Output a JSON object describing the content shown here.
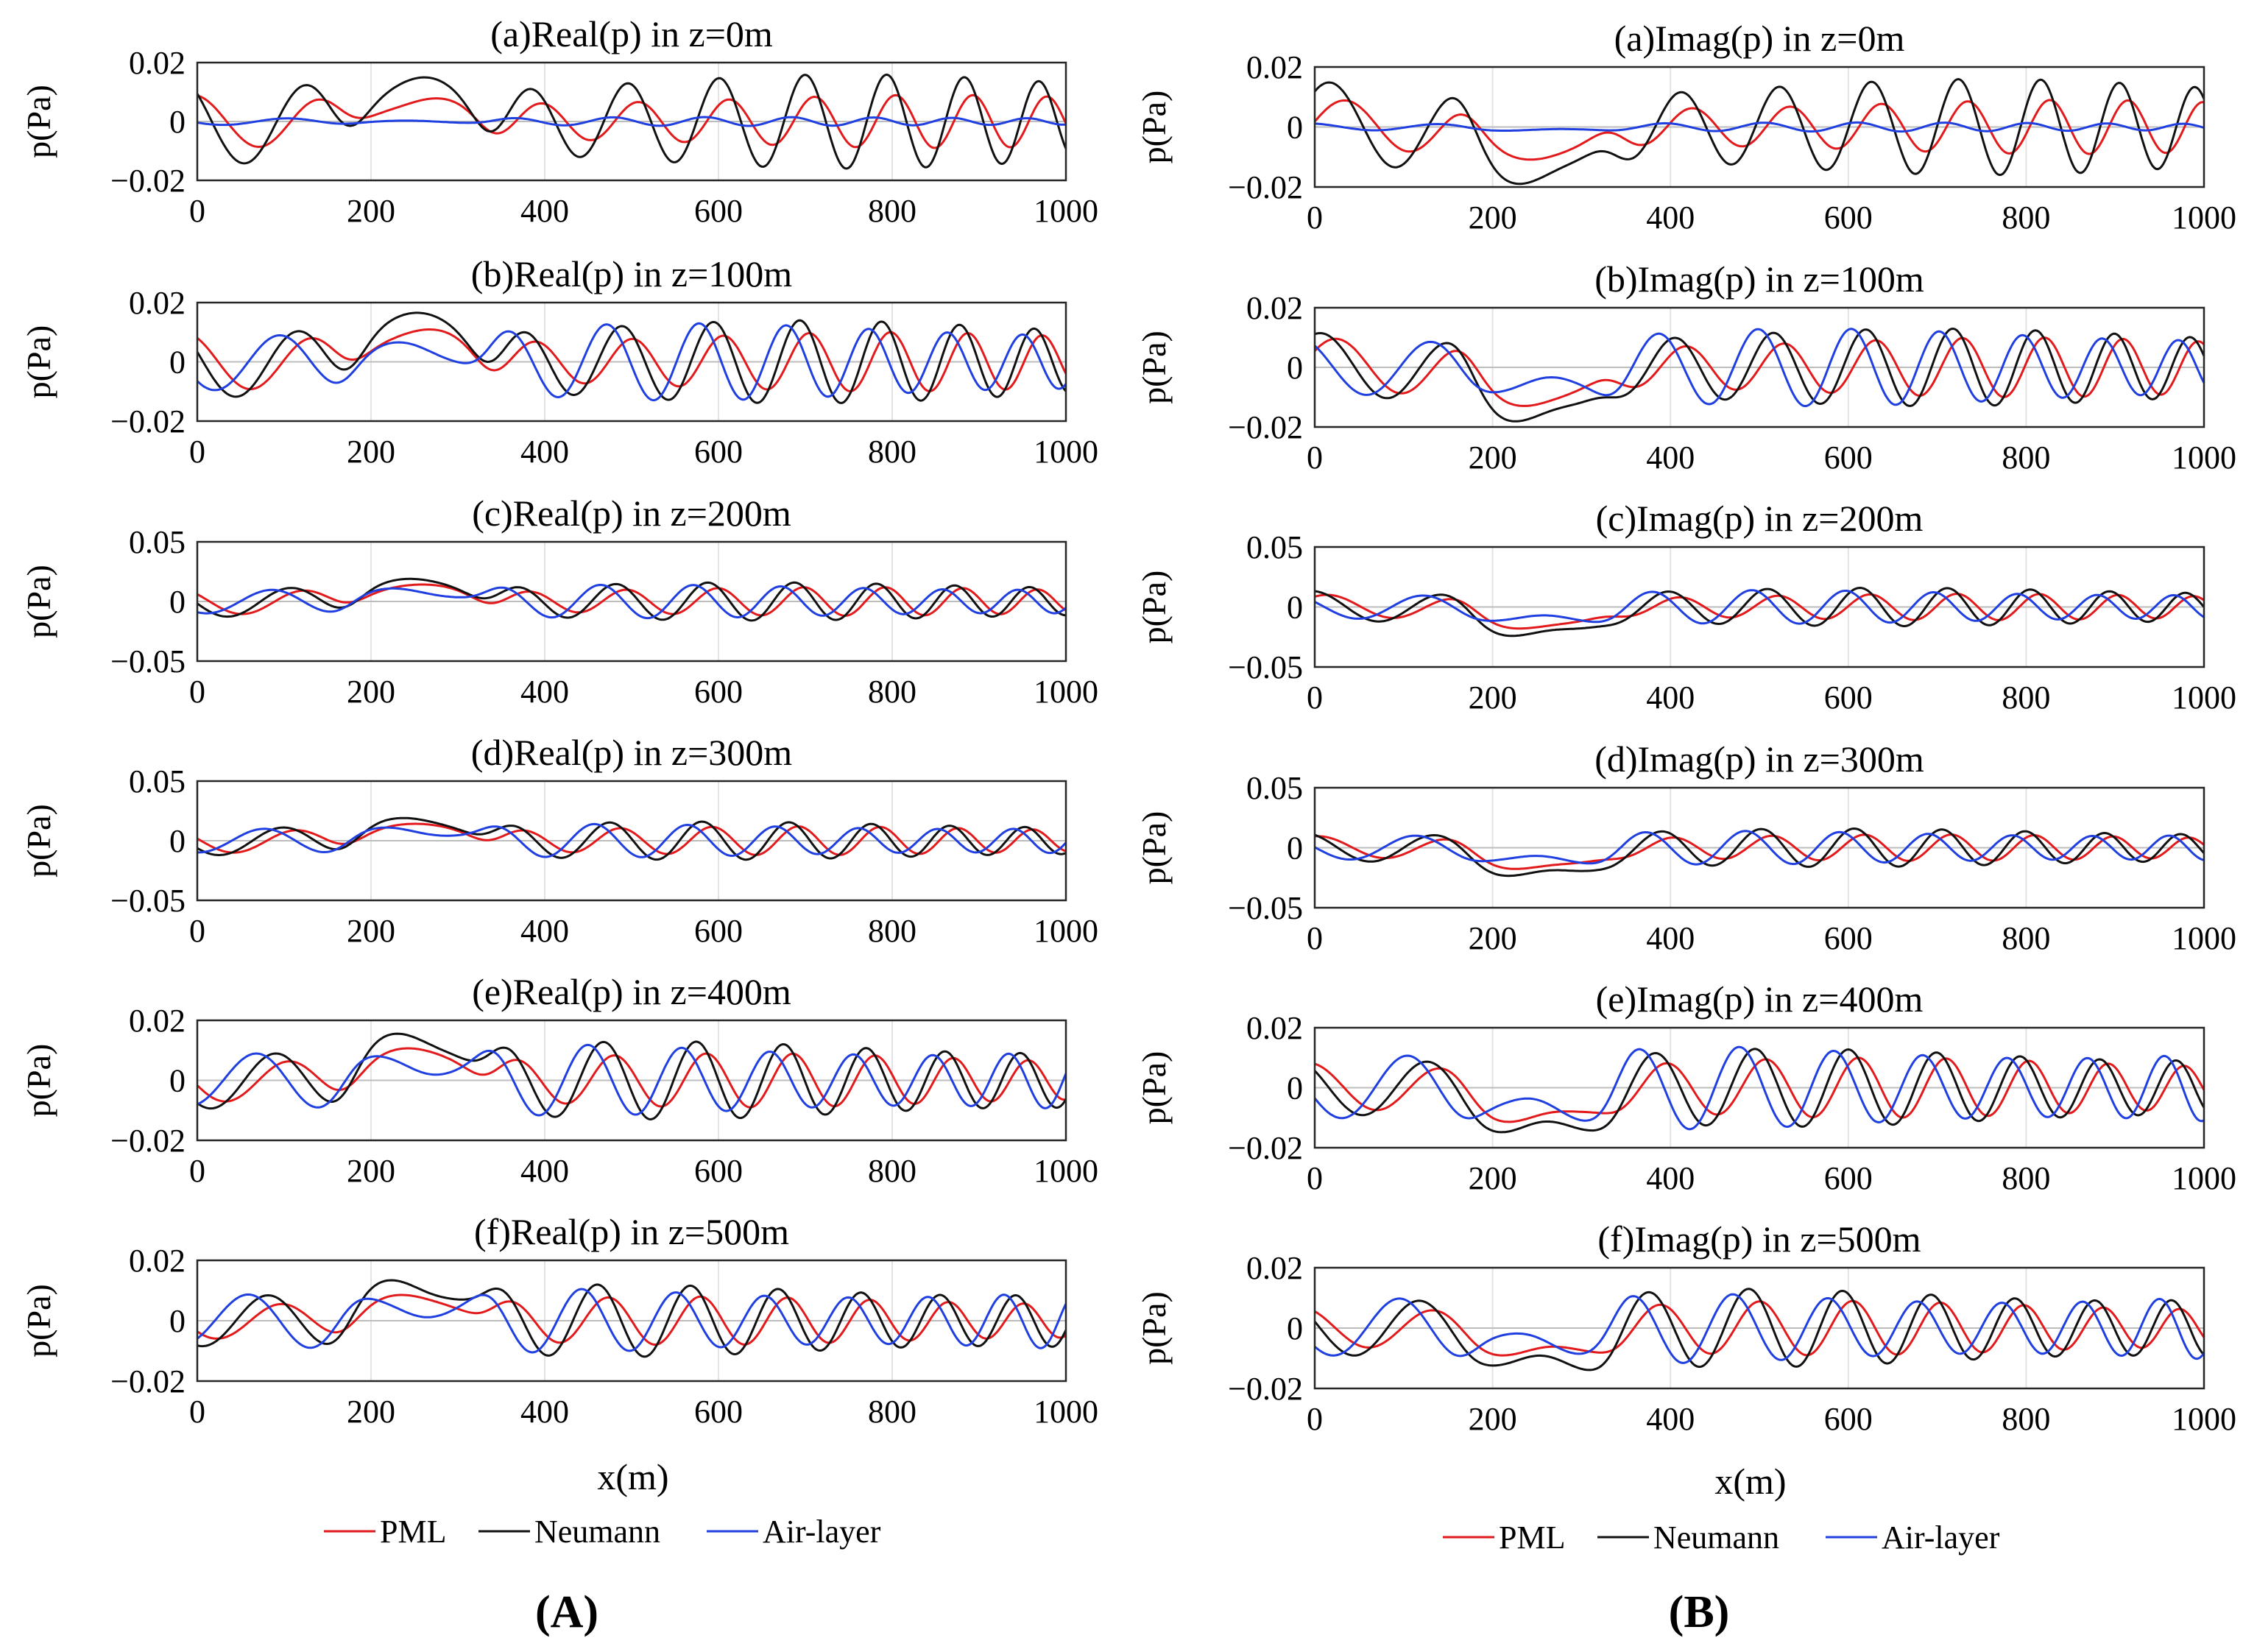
{
  "figure": {
    "panel_labels": [
      "(A)",
      "(B)"
    ],
    "legend_labels": [
      "PML",
      "Neumann",
      "Air-layer"
    ]
  },
  "chart_data": [
    {
      "id": "A-a",
      "type": "line",
      "title": "(a)Real(p) in z=0m",
      "ylabel": "p(Pa)",
      "xlabel": "",
      "xlim": [
        0,
        1000
      ],
      "ylim": [
        -0.02,
        0.02
      ],
      "xticks": [
        "0",
        "200",
        "400",
        "600",
        "800",
        "1000"
      ],
      "yticks": [
        "0.02",
        "0",
        "−0.02"
      ],
      "grid": "x",
      "series": [
        {
          "name": "PML",
          "color": "#e31a1c",
          "amplitude": 0.009,
          "bump": 0.006
        },
        {
          "name": "Neumann",
          "color": "#111111",
          "amplitude": 0.016,
          "bump": 0.012
        },
        {
          "name": "Air-layer",
          "color": "#1f3fe0",
          "amplitude": 0.0015,
          "bump": 0.0
        }
      ]
    },
    {
      "id": "A-b",
      "type": "line",
      "title": "(b)Real(p) in z=100m",
      "ylabel": "p(Pa)",
      "xlabel": "",
      "xlim": [
        0,
        1000
      ],
      "ylim": [
        -0.02,
        0.02
      ],
      "xticks": [
        "0",
        "200",
        "400",
        "600",
        "800",
        "1000"
      ],
      "yticks": [
        "0.02",
        "0",
        "−0.02"
      ],
      "grid": "x",
      "series": [
        {
          "name": "PML",
          "color": "#e31a1c",
          "amplitude": 0.01,
          "bump": 0.009
        },
        {
          "name": "Neumann",
          "color": "#111111",
          "amplitude": 0.014,
          "bump": 0.014
        },
        {
          "name": "Air-layer",
          "color": "#1f3fe0",
          "amplitude": 0.013,
          "bump": 0.004
        }
      ]
    },
    {
      "id": "A-c",
      "type": "line",
      "title": "(c)Real(p) in z=200m",
      "ylabel": "p(Pa)",
      "xlabel": "",
      "xlim": [
        0,
        1000
      ],
      "ylim": [
        -0.05,
        0.05
      ],
      "xticks": [
        "0",
        "200",
        "400",
        "600",
        "800",
        "1000"
      ],
      "yticks": [
        "0.05",
        "0",
        "−0.05"
      ],
      "grid": "x",
      "series": [
        {
          "name": "PML",
          "color": "#e31a1c",
          "amplitude": 0.012,
          "bump": 0.012
        },
        {
          "name": "Neumann",
          "color": "#111111",
          "amplitude": 0.016,
          "bump": 0.016
        },
        {
          "name": "Air-layer",
          "color": "#1f3fe0",
          "amplitude": 0.014,
          "bump": 0.008
        }
      ]
    },
    {
      "id": "A-d",
      "type": "line",
      "title": "(d)Real(p) in z=300m",
      "ylabel": "p(Pa)",
      "xlabel": "",
      "xlim": [
        0,
        1000
      ],
      "ylim": [
        -0.05,
        0.05
      ],
      "xticks": [
        "0",
        "200",
        "400",
        "600",
        "800",
        "1000"
      ],
      "yticks": [
        "0.05",
        "0",
        "−0.05"
      ],
      "grid": "x",
      "series": [
        {
          "name": "PML",
          "color": "#e31a1c",
          "amplitude": 0.012,
          "bump": 0.012
        },
        {
          "name": "Neumann",
          "color": "#111111",
          "amplitude": 0.016,
          "bump": 0.016
        },
        {
          "name": "Air-layer",
          "color": "#1f3fe0",
          "amplitude": 0.014,
          "bump": 0.008
        }
      ]
    },
    {
      "id": "A-e",
      "type": "line",
      "title": "(e)Real(p) in z=400m",
      "ylabel": "p(Pa)",
      "xlabel": "",
      "xlim": [
        0,
        1000
      ],
      "ylim": [
        -0.02,
        0.02
      ],
      "xticks": [
        "0",
        "200",
        "400",
        "600",
        "800",
        "1000"
      ],
      "yticks": [
        "0.02",
        "0",
        "−0.02"
      ],
      "grid": "x",
      "series": [
        {
          "name": "PML",
          "color": "#e31a1c",
          "amplitude": 0.009,
          "bump": 0.009
        },
        {
          "name": "Neumann",
          "color": "#111111",
          "amplitude": 0.013,
          "bump": 0.013
        },
        {
          "name": "Air-layer",
          "color": "#1f3fe0",
          "amplitude": 0.012,
          "bump": 0.005
        }
      ]
    },
    {
      "id": "A-f",
      "type": "line",
      "title": "(f)Real(p) in z=500m",
      "ylabel": "p(Pa)",
      "xlabel": "x(m)",
      "xlim": [
        0,
        1000
      ],
      "ylim": [
        -0.02,
        0.02
      ],
      "xticks": [
        "0",
        "200",
        "400",
        "600",
        "800",
        "1000"
      ],
      "yticks": [
        "0.02",
        "0",
        "−0.02"
      ],
      "grid": "x",
      "series": [
        {
          "name": "PML",
          "color": "#e31a1c",
          "amplitude": 0.008,
          "bump": 0.007
        },
        {
          "name": "Neumann",
          "color": "#111111",
          "amplitude": 0.012,
          "bump": 0.011
        },
        {
          "name": "Air-layer",
          "color": "#1f3fe0",
          "amplitude": 0.011,
          "bump": 0.004
        }
      ]
    },
    {
      "id": "B-a",
      "type": "line",
      "title": "(a)Imag(p) in z=0m",
      "ylabel": "p(Pa)",
      "xlabel": "",
      "xlim": [
        0,
        1000
      ],
      "ylim": [
        -0.02,
        0.02
      ],
      "xticks": [
        "0",
        "200",
        "400",
        "600",
        "800",
        "1000"
      ],
      "yticks": [
        "0.02",
        "0",
        "−0.02"
      ],
      "grid": "x",
      "series": [
        {
          "name": "PML",
          "color": "#e31a1c",
          "amplitude": 0.009,
          "bump": -0.009
        },
        {
          "name": "Neumann",
          "color": "#111111",
          "amplitude": 0.016,
          "bump": -0.016
        },
        {
          "name": "Air-layer",
          "color": "#1f3fe0",
          "amplitude": 0.0015,
          "bump": -0.001
        }
      ]
    },
    {
      "id": "B-b",
      "type": "line",
      "title": "(b)Imag(p) in z=100m",
      "ylabel": "p(Pa)",
      "xlabel": "",
      "xlim": [
        0,
        1000
      ],
      "ylim": [
        -0.02,
        0.02
      ],
      "xticks": [
        "0",
        "200",
        "400",
        "600",
        "800",
        "1000"
      ],
      "yticks": [
        "0.02",
        "0",
        "−0.02"
      ],
      "grid": "x",
      "series": [
        {
          "name": "PML",
          "color": "#e31a1c",
          "amplitude": 0.01,
          "bump": -0.011
        },
        {
          "name": "Neumann",
          "color": "#111111",
          "amplitude": 0.013,
          "bump": -0.016
        },
        {
          "name": "Air-layer",
          "color": "#1f3fe0",
          "amplitude": 0.013,
          "bump": -0.006
        }
      ]
    },
    {
      "id": "B-c",
      "type": "line",
      "title": "(c)Imag(p) in z=200m",
      "ylabel": "p(Pa)",
      "xlabel": "",
      "xlim": [
        0,
        1000
      ],
      "ylim": [
        -0.05,
        0.05
      ],
      "xticks": [
        "0",
        "200",
        "400",
        "600",
        "800",
        "1000"
      ],
      "yticks": [
        "0.05",
        "0",
        "−0.05"
      ],
      "grid": "x",
      "series": [
        {
          "name": "PML",
          "color": "#e31a1c",
          "amplitude": 0.011,
          "bump": -0.016
        },
        {
          "name": "Neumann",
          "color": "#111111",
          "amplitude": 0.016,
          "bump": -0.022
        },
        {
          "name": "Air-layer",
          "color": "#1f3fe0",
          "amplitude": 0.014,
          "bump": -0.01
        }
      ]
    },
    {
      "id": "B-d",
      "type": "line",
      "title": "(d)Imag(p) in z=300m",
      "ylabel": "p(Pa)",
      "xlabel": "",
      "xlim": [
        0,
        1000
      ],
      "ylim": [
        -0.05,
        0.05
      ],
      "xticks": [
        "0",
        "200",
        "400",
        "600",
        "800",
        "1000"
      ],
      "yticks": [
        "0.05",
        "0",
        "−0.05"
      ],
      "grid": "x",
      "series": [
        {
          "name": "PML",
          "color": "#e31a1c",
          "amplitude": 0.011,
          "bump": -0.016
        },
        {
          "name": "Neumann",
          "color": "#111111",
          "amplitude": 0.016,
          "bump": -0.022
        },
        {
          "name": "Air-layer",
          "color": "#1f3fe0",
          "amplitude": 0.014,
          "bump": -0.01
        }
      ]
    },
    {
      "id": "B-e",
      "type": "line",
      "title": "(e)Imag(p) in z=400m",
      "ylabel": "p(Pa)",
      "xlabel": "",
      "xlim": [
        0,
        1000
      ],
      "ylim": [
        -0.02,
        0.02
      ],
      "xticks": [
        "0",
        "200",
        "400",
        "600",
        "800",
        "1000"
      ],
      "yticks": [
        "0.02",
        "0",
        "−0.02"
      ],
      "grid": "x",
      "series": [
        {
          "name": "PML",
          "color": "#e31a1c",
          "amplitude": 0.01,
          "bump": -0.01
        },
        {
          "name": "Neumann",
          "color": "#111111",
          "amplitude": 0.013,
          "bump": -0.014
        },
        {
          "name": "Air-layer",
          "color": "#1f3fe0",
          "amplitude": 0.014,
          "bump": -0.007
        }
      ]
    },
    {
      "id": "B-f",
      "type": "line",
      "title": "(f)Imag(p) in z=500m",
      "ylabel": "p(Pa)",
      "xlabel": "x(m)",
      "xlim": [
        0,
        1000
      ],
      "ylim": [
        -0.02,
        0.02
      ],
      "xticks": [
        "0",
        "200",
        "400",
        "600",
        "800",
        "1000"
      ],
      "yticks": [
        "0.02",
        "0",
        "−0.02"
      ],
      "grid": "x",
      "series": [
        {
          "name": "PML",
          "color": "#e31a1c",
          "amplitude": 0.009,
          "bump": -0.008
        },
        {
          "name": "Neumann",
          "color": "#111111",
          "amplitude": 0.013,
          "bump": -0.012
        },
        {
          "name": "Air-layer",
          "color": "#1f3fe0",
          "amplitude": 0.012,
          "bump": -0.005
        }
      ]
    }
  ]
}
